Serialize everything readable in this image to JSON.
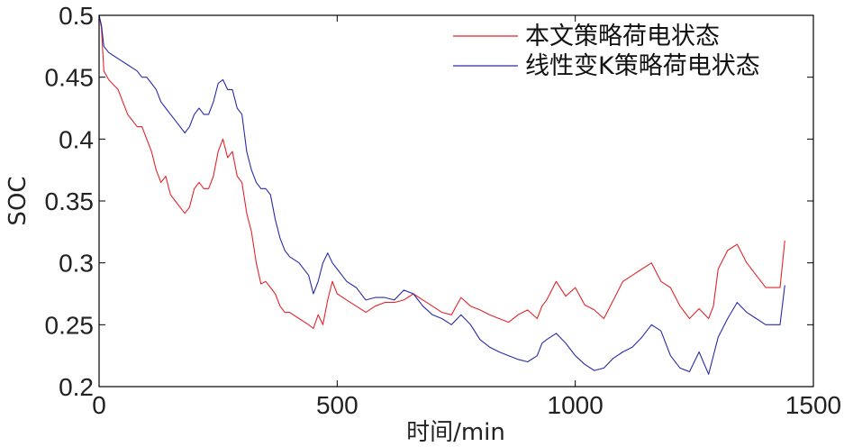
{
  "chart_data": {
    "type": "line",
    "xlabel": "时间/min",
    "ylabel": "SOC",
    "xlim": [
      0,
      1500
    ],
    "ylim": [
      0.2,
      0.5
    ],
    "xticks": [
      0,
      500,
      1000,
      1500
    ],
    "xtick_labels": [
      "0",
      "500",
      "1000",
      "1500"
    ],
    "yticks": [
      0.2,
      0.25,
      0.3,
      0.35,
      0.4,
      0.45,
      0.5
    ],
    "ytick_labels": [
      "0.2",
      "0.25",
      "0.3",
      "0.35",
      "0.4",
      "0.45",
      "0.5"
    ],
    "grid": false,
    "legend_position": "top-right",
    "series": [
      {
        "name": "本文策略荷电状态",
        "color": "#e0262b",
        "x": [
          0,
          5,
          10,
          20,
          40,
          60,
          80,
          90,
          100,
          110,
          120,
          130,
          140,
          150,
          160,
          170,
          180,
          190,
          200,
          210,
          220,
          230,
          240,
          250,
          260,
          270,
          280,
          290,
          300,
          310,
          320,
          330,
          340,
          350,
          360,
          370,
          380,
          390,
          400,
          420,
          440,
          450,
          460,
          470,
          480,
          490,
          500,
          520,
          540,
          560,
          580,
          600,
          620,
          640,
          660,
          680,
          700,
          720,
          740,
          760,
          780,
          800,
          820,
          840,
          860,
          880,
          900,
          920,
          930,
          940,
          960,
          980,
          1000,
          1020,
          1040,
          1060,
          1080,
          1100,
          1120,
          1140,
          1160,
          1180,
          1200,
          1220,
          1240,
          1260,
          1280,
          1290,
          1300,
          1320,
          1340,
          1360,
          1380,
          1400,
          1420,
          1430,
          1440
        ],
        "values": [
          0.5,
          0.49,
          0.455,
          0.448,
          0.44,
          0.42,
          0.41,
          0.41,
          0.4,
          0.39,
          0.375,
          0.365,
          0.37,
          0.355,
          0.35,
          0.345,
          0.34,
          0.345,
          0.36,
          0.365,
          0.36,
          0.36,
          0.37,
          0.39,
          0.4,
          0.385,
          0.39,
          0.37,
          0.365,
          0.34,
          0.325,
          0.3,
          0.283,
          0.285,
          0.28,
          0.275,
          0.265,
          0.26,
          0.26,
          0.255,
          0.25,
          0.247,
          0.258,
          0.25,
          0.27,
          0.285,
          0.275,
          0.27,
          0.265,
          0.26,
          0.265,
          0.268,
          0.268,
          0.27,
          0.275,
          0.27,
          0.265,
          0.26,
          0.258,
          0.272,
          0.265,
          0.262,
          0.258,
          0.255,
          0.252,
          0.258,
          0.262,
          0.255,
          0.265,
          0.27,
          0.285,
          0.273,
          0.28,
          0.266,
          0.262,
          0.255,
          0.27,
          0.285,
          0.29,
          0.295,
          0.3,
          0.285,
          0.28,
          0.265,
          0.255,
          0.263,
          0.255,
          0.265,
          0.295,
          0.31,
          0.315,
          0.3,
          0.29,
          0.28,
          0.28,
          0.28,
          0.318
        ]
      },
      {
        "name": "线性变K策略荷电状态",
        "color": "#2a2aa8",
        "x": [
          0,
          5,
          10,
          20,
          40,
          60,
          80,
          90,
          100,
          110,
          120,
          130,
          140,
          150,
          160,
          170,
          180,
          190,
          200,
          210,
          220,
          230,
          240,
          250,
          260,
          270,
          280,
          290,
          300,
          310,
          320,
          330,
          340,
          350,
          360,
          370,
          380,
          390,
          400,
          420,
          440,
          450,
          460,
          470,
          480,
          490,
          500,
          520,
          540,
          560,
          580,
          600,
          620,
          640,
          660,
          680,
          700,
          720,
          740,
          760,
          780,
          800,
          820,
          840,
          860,
          880,
          900,
          920,
          930,
          940,
          960,
          980,
          1000,
          1020,
          1040,
          1060,
          1080,
          1100,
          1120,
          1140,
          1160,
          1180,
          1200,
          1220,
          1240,
          1260,
          1280,
          1290,
          1300,
          1320,
          1340,
          1360,
          1380,
          1400,
          1420,
          1430,
          1440
        ],
        "values": [
          0.5,
          0.492,
          0.475,
          0.47,
          0.465,
          0.46,
          0.455,
          0.45,
          0.45,
          0.445,
          0.44,
          0.43,
          0.425,
          0.42,
          0.415,
          0.41,
          0.405,
          0.41,
          0.42,
          0.425,
          0.42,
          0.42,
          0.43,
          0.445,
          0.448,
          0.44,
          0.44,
          0.425,
          0.42,
          0.39,
          0.375,
          0.365,
          0.36,
          0.36,
          0.355,
          0.335,
          0.32,
          0.31,
          0.305,
          0.3,
          0.29,
          0.275,
          0.285,
          0.3,
          0.308,
          0.3,
          0.295,
          0.285,
          0.28,
          0.27,
          0.272,
          0.272,
          0.27,
          0.278,
          0.275,
          0.265,
          0.258,
          0.255,
          0.25,
          0.258,
          0.25,
          0.238,
          0.232,
          0.228,
          0.225,
          0.222,
          0.22,
          0.225,
          0.235,
          0.238,
          0.243,
          0.235,
          0.225,
          0.218,
          0.213,
          0.215,
          0.223,
          0.228,
          0.232,
          0.24,
          0.25,
          0.245,
          0.225,
          0.215,
          0.212,
          0.228,
          0.21,
          0.225,
          0.24,
          0.255,
          0.268,
          0.26,
          0.255,
          0.25,
          0.25,
          0.25,
          0.282
        ]
      }
    ]
  }
}
